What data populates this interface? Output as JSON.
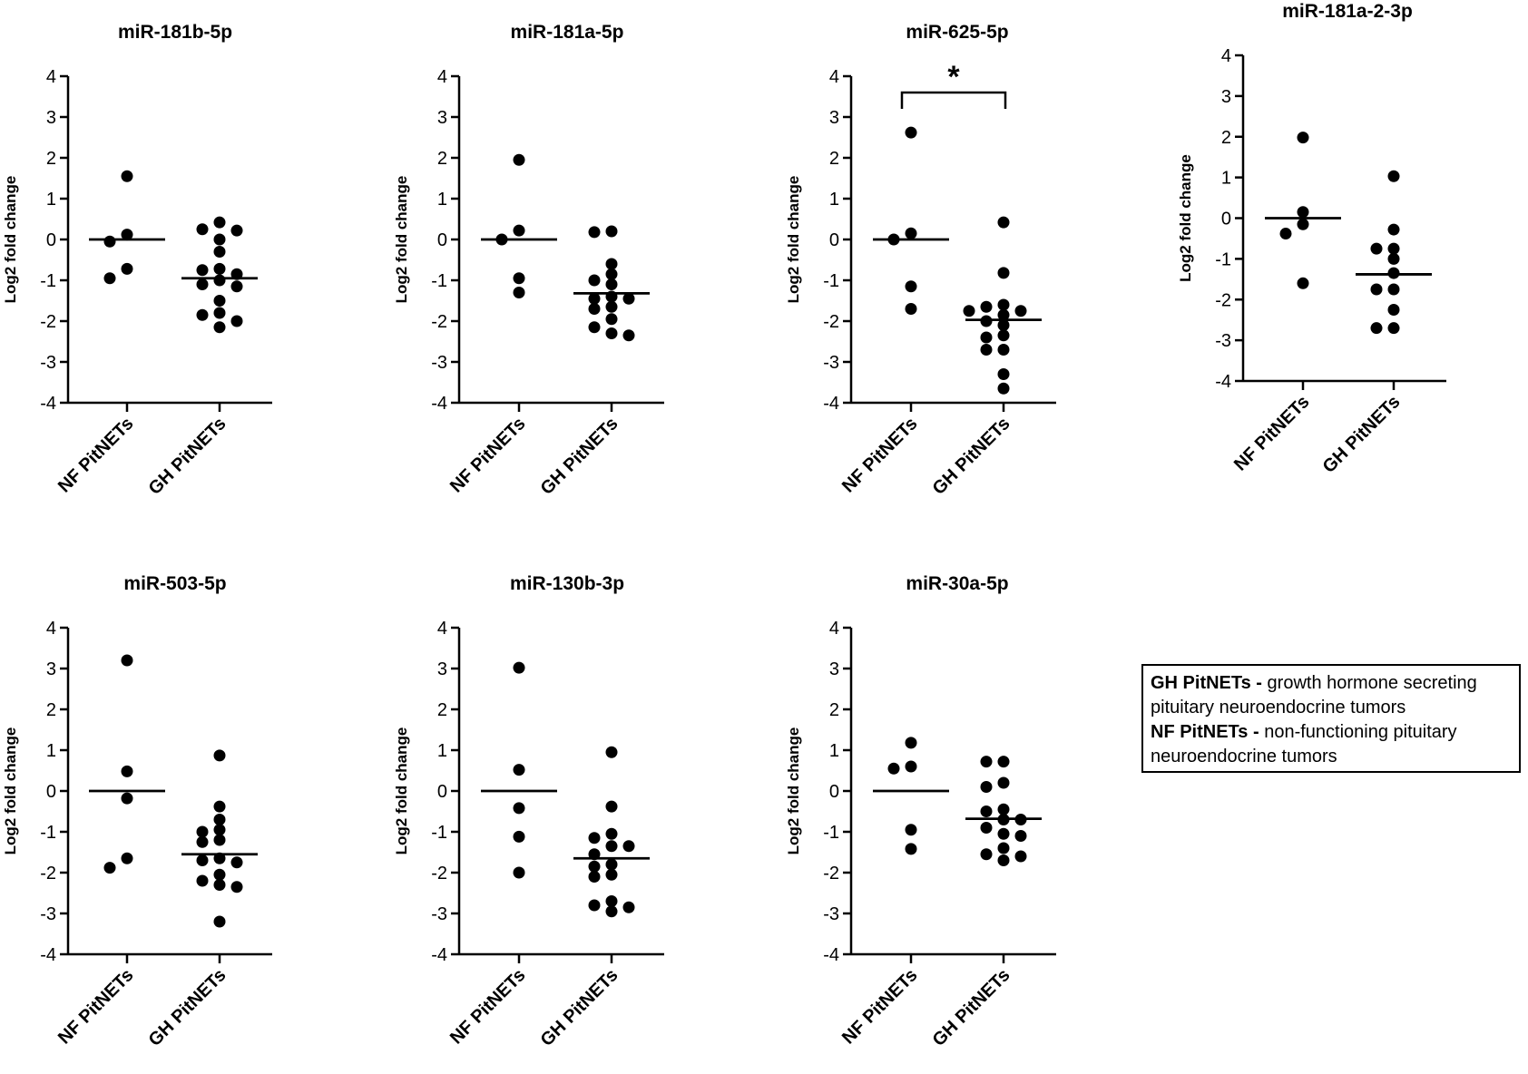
{
  "chart_data": [
    {
      "type": "scatter",
      "title": "miR-181b-5p",
      "ylabel": "Log2 fold change",
      "categories": [
        "NF PitNETs",
        "GH PitNETs"
      ],
      "yticks": [
        4,
        3,
        2,
        1,
        0,
        -1,
        -2,
        -3,
        -4
      ],
      "ylim": [
        -4,
        4
      ],
      "series": [
        {
          "values": [
            1.55,
            0.12,
            -0.05,
            -0.72,
            -0.95
          ],
          "mean": 0.0
        },
        {
          "values": [
            0.42,
            0.22,
            0.25,
            0.0,
            -0.3,
            -0.75,
            -0.72,
            -0.85,
            -1.0,
            -1.1,
            -1.15,
            -1.5,
            -1.8,
            -1.85,
            -2.0,
            -2.15
          ],
          "mean": -0.95
        }
      ],
      "significance": null
    },
    {
      "type": "scatter",
      "title": "miR-181a-5p",
      "ylabel": "Log2 fold change",
      "categories": [
        "NF PitNETs",
        "GH PitNETs"
      ],
      "yticks": [
        4,
        3,
        2,
        1,
        0,
        -1,
        -2,
        -3,
        -4
      ],
      "ylim": [
        -4,
        4
      ],
      "series": [
        {
          "values": [
            1.95,
            0.22,
            0.0,
            -0.95,
            -1.3
          ],
          "mean": 0.0
        },
        {
          "values": [
            0.2,
            0.18,
            -0.6,
            -0.85,
            -1.0,
            -1.1,
            -1.4,
            -1.45,
            -1.45,
            -1.65,
            -1.7,
            -1.95,
            -2.15,
            -2.3,
            -2.35
          ],
          "mean": -1.32
        }
      ],
      "significance": null
    },
    {
      "type": "scatter",
      "title": "miR-625-5p",
      "ylabel": "Log2 fold change",
      "categories": [
        "NF PitNETs",
        "GH PitNETs"
      ],
      "yticks": [
        4,
        3,
        2,
        1,
        0,
        -1,
        -2,
        -3,
        -4
      ],
      "ylim": [
        -4,
        4
      ],
      "series": [
        {
          "values": [
            2.62,
            0.15,
            0.0,
            -1.15,
            -1.7
          ],
          "mean": 0.0
        },
        {
          "values": [
            0.42,
            -0.82,
            -1.6,
            -1.65,
            -1.75,
            -1.75,
            -1.85,
            -2.0,
            -2.1,
            -2.35,
            -2.4,
            -2.7,
            -2.7,
            -3.3,
            -3.65
          ],
          "mean": -1.97
        }
      ],
      "significance": {
        "label": "*",
        "between": [
          "NF PitNETs",
          "GH PitNETs"
        ],
        "y": 3.6
      }
    },
    {
      "type": "scatter",
      "title": "miR-181a-2-3p",
      "ylabel": "Log2 fold change",
      "categories": [
        "NF PitNETs",
        "GH PitNETs"
      ],
      "yticks": [
        4,
        3,
        2,
        1,
        0,
        -1,
        -2,
        -3,
        -4
      ],
      "ylim": [
        -4,
        4
      ],
      "series": [
        {
          "values": [
            1.98,
            0.15,
            -0.15,
            -0.38,
            -1.6
          ],
          "mean": 0.0
        },
        {
          "values": [
            1.03,
            -0.28,
            -0.75,
            -0.75,
            -1.0,
            -1.35,
            -1.75,
            -1.75,
            -2.25,
            -2.7,
            -2.7
          ],
          "mean": -1.38
        }
      ],
      "significance": null
    },
    {
      "type": "scatter",
      "title": "miR-503-5p",
      "ylabel": "Log2 fold change",
      "categories": [
        "NF PitNETs",
        "GH PitNETs"
      ],
      "yticks": [
        4,
        3,
        2,
        1,
        0,
        -1,
        -2,
        -3,
        -4
      ],
      "ylim": [
        -4,
        4
      ],
      "series": [
        {
          "values": [
            3.2,
            0.48,
            -0.18,
            -1.65,
            -1.88
          ],
          "mean": 0.0
        },
        {
          "values": [
            0.87,
            -0.38,
            -0.7,
            -0.95,
            -1.0,
            -1.2,
            -1.25,
            -1.65,
            -1.7,
            -1.75,
            -2.05,
            -2.2,
            -2.3,
            -2.35,
            -3.2
          ],
          "mean": -1.55
        }
      ],
      "significance": null
    },
    {
      "type": "scatter",
      "title": "miR-130b-3p",
      "ylabel": "Log2 fold change",
      "categories": [
        "NF PitNETs",
        "GH PitNETs"
      ],
      "yticks": [
        4,
        3,
        2,
        1,
        0,
        -1,
        -2,
        -3,
        -4
      ],
      "ylim": [
        -4,
        4
      ],
      "series": [
        {
          "values": [
            3.02,
            0.52,
            -0.42,
            -1.12,
            -2.0
          ],
          "mean": 0.0
        },
        {
          "values": [
            0.95,
            -0.38,
            -1.05,
            -1.15,
            -1.35,
            -1.35,
            -1.55,
            -1.8,
            -1.85,
            -2.05,
            -2.1,
            -2.7,
            -2.8,
            -2.85,
            -2.95
          ],
          "mean": -1.65
        }
      ],
      "significance": null
    },
    {
      "type": "scatter",
      "title": "miR-30a-5p",
      "ylabel": "Log2 fold change",
      "categories": [
        "NF PitNETs",
        "GH PitNETs"
      ],
      "yticks": [
        4,
        3,
        2,
        1,
        0,
        -1,
        -2,
        -3,
        -4
      ],
      "ylim": [
        -4,
        4
      ],
      "series": [
        {
          "values": [
            1.18,
            0.6,
            0.55,
            -0.95,
            -1.42
          ],
          "mean": 0.0
        },
        {
          "values": [
            0.72,
            0.72,
            0.2,
            0.1,
            -0.45,
            -0.5,
            -0.7,
            -0.7,
            -0.9,
            -1.05,
            -1.1,
            -1.4,
            -1.55,
            -1.6,
            -1.7
          ],
          "mean": -0.68
        }
      ],
      "significance": null
    }
  ],
  "legend": {
    "gh_term": "GH PitNETs -",
    "gh_desc": "growth hormone secreting pituitary neuroendocrine tumors",
    "nf_term": "NF PitNETs -",
    "nf_desc": "non-functioning pituitary neuroendocrine tumors"
  }
}
